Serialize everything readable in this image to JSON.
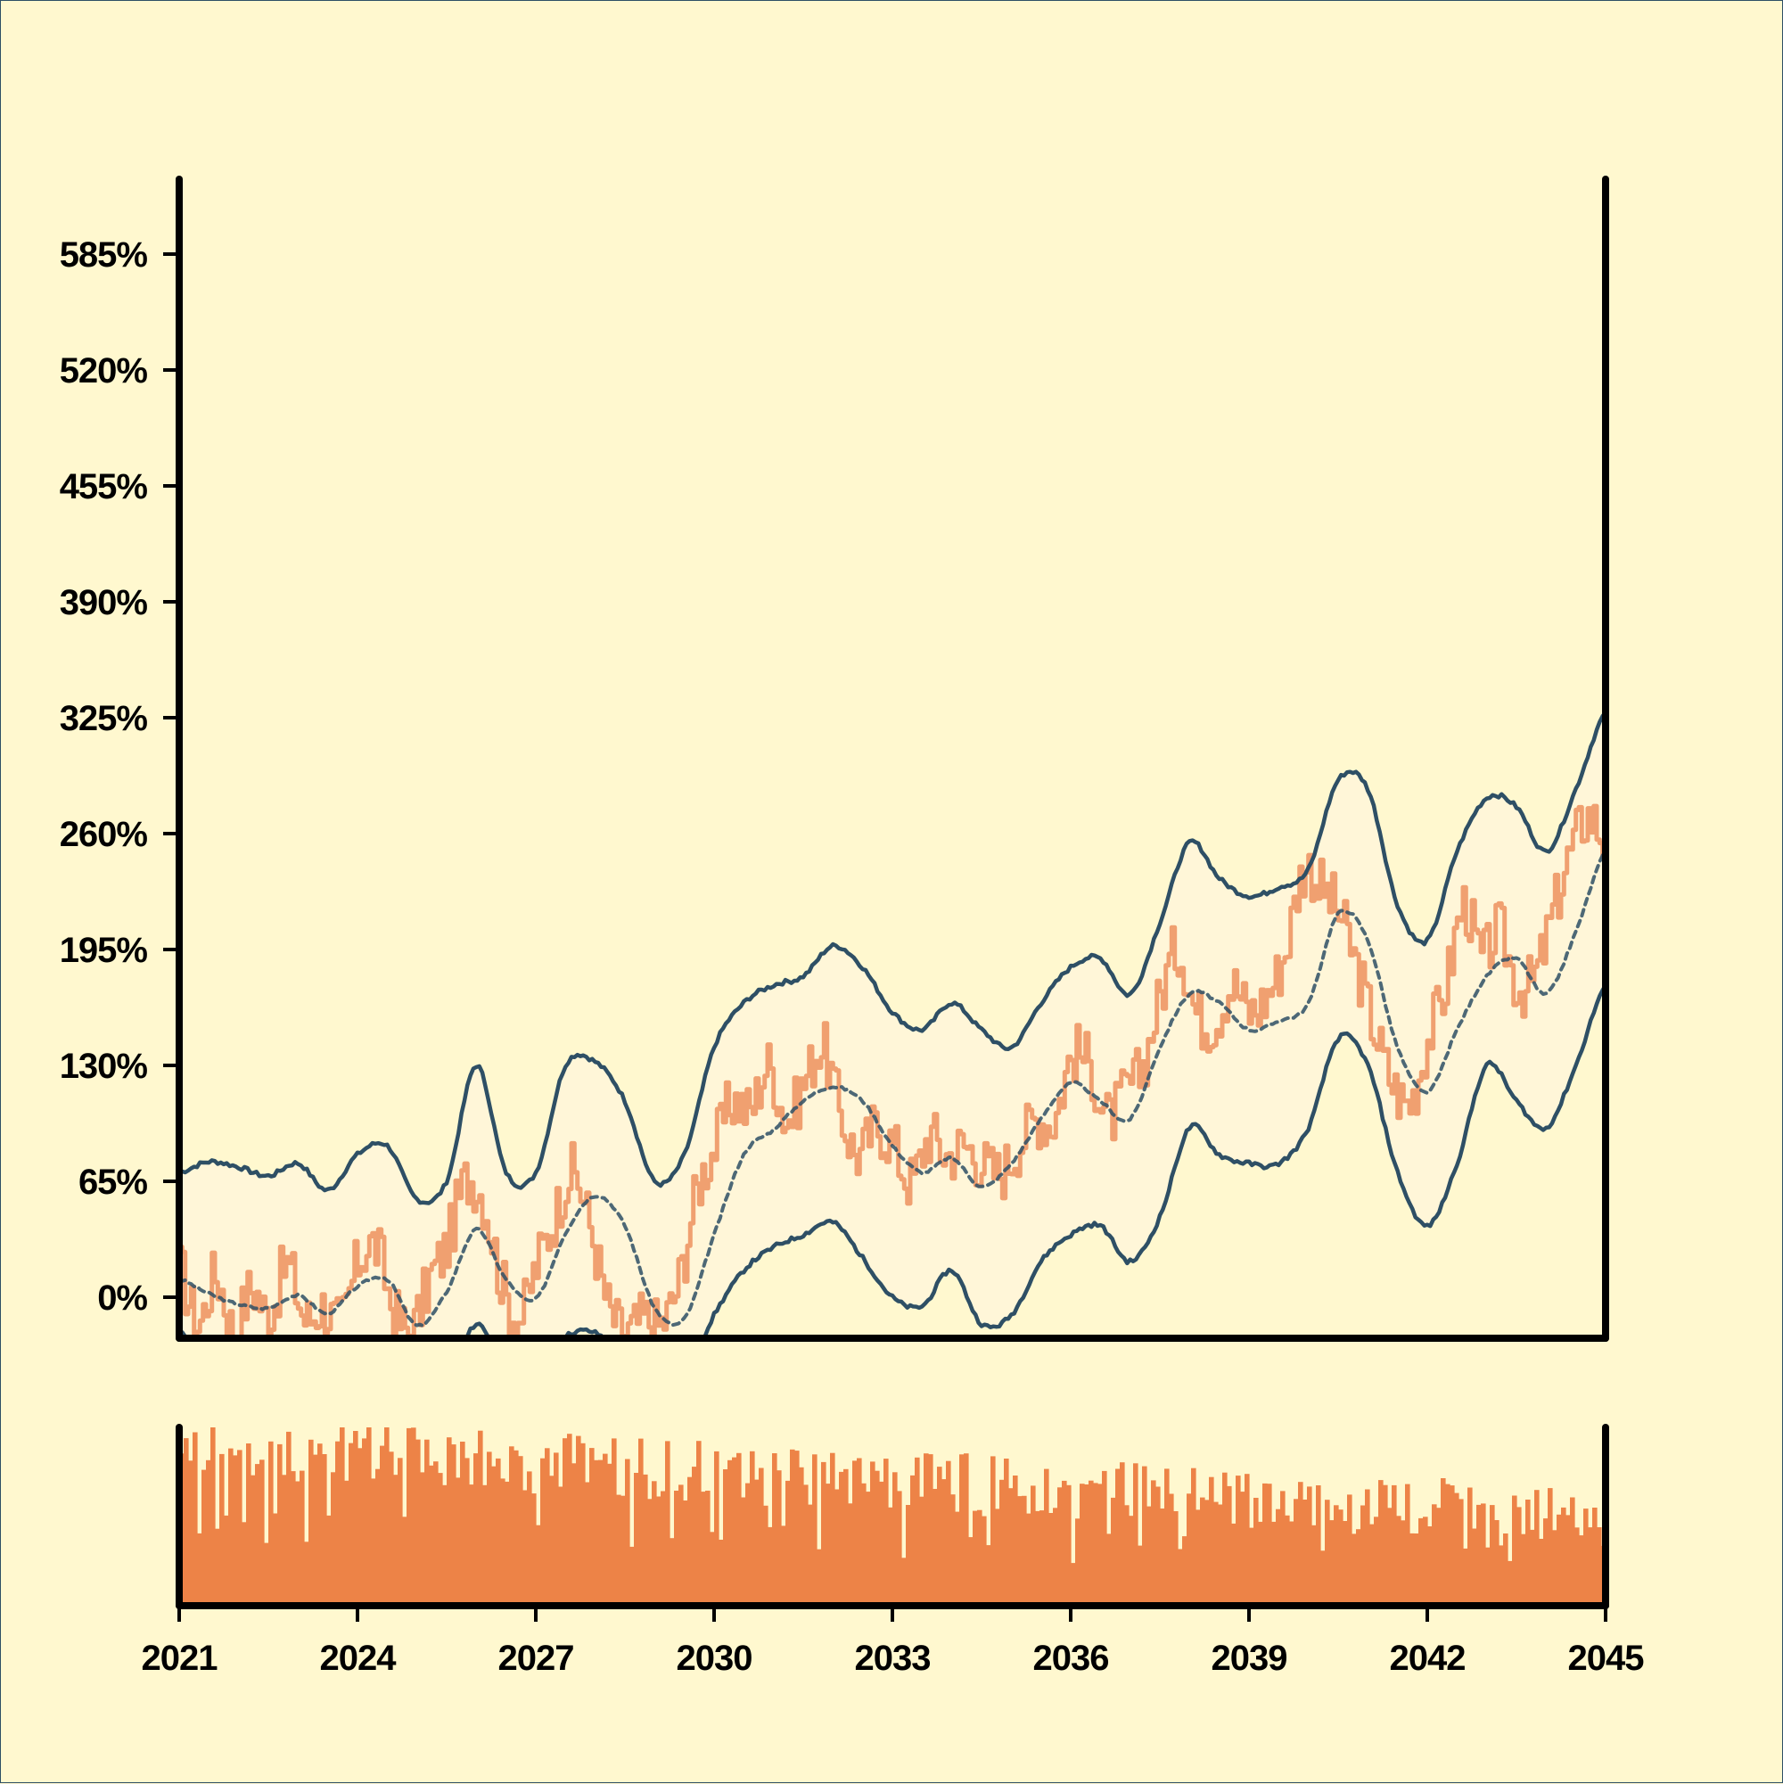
{
  "chart_data": [
    {
      "type": "line",
      "title": "",
      "xlabel": "",
      "ylabel": "",
      "x_range": [
        "2021",
        "2045"
      ],
      "ylim": [
        -23,
        627
      ],
      "y_ticks": [
        "0%",
        "65%",
        "130%",
        "195%",
        "260%",
        "325%",
        "390%",
        "455%",
        "520%",
        "585%"
      ],
      "y_tick_values": [
        0,
        65,
        130,
        195,
        260,
        325,
        390,
        455,
        520,
        585
      ],
      "grid": false,
      "colors": {
        "price": "#f0a070",
        "band": "#2e4f65",
        "band_fill": "#fff6d8",
        "background": "#fff8cf"
      },
      "series": [
        {
          "key": "price",
          "style": "solid",
          "points": [
            [
              2021.0,
              15
            ],
            [
              2021.3,
              -15
            ],
            [
              2021.6,
              12
            ],
            [
              2021.9,
              -18
            ],
            [
              2022.2,
              5
            ],
            [
              2022.5,
              -10
            ],
            [
              2022.8,
              18
            ],
            [
              2023.1,
              -12
            ],
            [
              2023.4,
              -5
            ],
            [
              2023.7,
              -14
            ],
            [
              2024.0,
              20
            ],
            [
              2024.3,
              28
            ],
            [
              2024.6,
              -8
            ],
            [
              2024.9,
              -18
            ],
            [
              2025.2,
              10
            ],
            [
              2025.5,
              30
            ],
            [
              2025.8,
              65
            ],
            [
              2026.1,
              55
            ],
            [
              2026.4,
              10
            ],
            [
              2026.7,
              -12
            ],
            [
              2027.0,
              18
            ],
            [
              2027.3,
              45
            ],
            [
              2027.6,
              70
            ],
            [
              2027.9,
              40
            ],
            [
              2028.2,
              -5
            ],
            [
              2028.5,
              -20
            ],
            [
              2028.8,
              -12
            ],
            [
              2029.1,
              -15
            ],
            [
              2029.4,
              10
            ],
            [
              2029.7,
              60
            ],
            [
              2030.0,
              85
            ],
            [
              2030.3,
              110
            ],
            [
              2030.6,
              105
            ],
            [
              2030.9,
              130
            ],
            [
              2031.2,
              100
            ],
            [
              2031.5,
              120
            ],
            [
              2031.8,
              140
            ],
            [
              2032.1,
              105
            ],
            [
              2032.4,
              80
            ],
            [
              2032.7,
              95
            ],
            [
              2033.0,
              85
            ],
            [
              2033.3,
              65
            ],
            [
              2033.6,
              90
            ],
            [
              2033.9,
              80
            ],
            [
              2034.2,
              85
            ],
            [
              2034.5,
              75
            ],
            [
              2034.8,
              70
            ],
            [
              2035.1,
              85
            ],
            [
              2035.4,
              100
            ],
            [
              2035.7,
              100
            ],
            [
              2036.0,
              135
            ],
            [
              2036.3,
              130
            ],
            [
              2036.6,
              100
            ],
            [
              2036.9,
              115
            ],
            [
              2037.2,
              130
            ],
            [
              2037.5,
              170
            ],
            [
              2037.8,
              195
            ],
            [
              2038.1,
              160
            ],
            [
              2038.4,
              155
            ],
            [
              2038.7,
              175
            ],
            [
              2039.0,
              160
            ],
            [
              2039.3,
              170
            ],
            [
              2039.6,
              195
            ],
            [
              2039.9,
              240
            ],
            [
              2040.2,
              230
            ],
            [
              2040.5,
              215
            ],
            [
              2040.8,
              185
            ],
            [
              2041.1,
              150
            ],
            [
              2041.4,
              120
            ],
            [
              2041.7,
              110
            ],
            [
              2042.0,
              145
            ],
            [
              2042.3,
              175
            ],
            [
              2042.6,
              220
            ],
            [
              2042.9,
              190
            ],
            [
              2043.2,
              205
            ],
            [
              2043.5,
              175
            ],
            [
              2043.8,
              180
            ],
            [
              2044.1,
              215
            ],
            [
              2044.4,
              250
            ],
            [
              2044.7,
              270
            ],
            [
              2045.0,
              255
            ]
          ]
        },
        {
          "key": "middle",
          "style": "dashed",
          "points": [
            [
              2021.0,
              10
            ],
            [
              2021.5,
              2
            ],
            [
              2022.0,
              -4
            ],
            [
              2022.5,
              -6
            ],
            [
              2023.0,
              1
            ],
            [
              2023.5,
              -9
            ],
            [
              2024.0,
              6
            ],
            [
              2024.5,
              10
            ],
            [
              2025.0,
              -16
            ],
            [
              2025.5,
              3
            ],
            [
              2026.0,
              38
            ],
            [
              2026.5,
              10
            ],
            [
              2027.0,
              -1
            ],
            [
              2027.5,
              36
            ],
            [
              2028.0,
              57
            ],
            [
              2028.5,
              40
            ],
            [
              2029.0,
              -6
            ],
            [
              2029.5,
              -12
            ],
            [
              2030.0,
              35
            ],
            [
              2030.5,
              80
            ],
            [
              2031.0,
              94
            ],
            [
              2031.5,
              110
            ],
            [
              2032.0,
              118
            ],
            [
              2032.5,
              110
            ],
            [
              2033.0,
              85
            ],
            [
              2033.5,
              70
            ],
            [
              2034.0,
              78
            ],
            [
              2034.5,
              62
            ],
            [
              2035.0,
              75
            ],
            [
              2035.5,
              100
            ],
            [
              2036.0,
              120
            ],
            [
              2036.5,
              110
            ],
            [
              2037.0,
              100
            ],
            [
              2037.5,
              140
            ],
            [
              2038.0,
              170
            ],
            [
              2038.5,
              165
            ],
            [
              2039.0,
              150
            ],
            [
              2039.5,
              155
            ],
            [
              2040.0,
              165
            ],
            [
              2040.5,
              215
            ],
            [
              2041.0,
              200
            ],
            [
              2041.5,
              140
            ],
            [
              2042.0,
              115
            ],
            [
              2042.5,
              150
            ],
            [
              2043.0,
              180
            ],
            [
              2043.5,
              190
            ],
            [
              2044.0,
              170
            ],
            [
              2044.5,
              205
            ],
            [
              2045.0,
              250
            ]
          ]
        },
        {
          "key": "upper",
          "style": "solid",
          "points": [
            [
              2021.0,
              70
            ],
            [
              2021.5,
              76
            ],
            [
              2022.0,
              73
            ],
            [
              2022.5,
              68
            ],
            [
              2023.0,
              75
            ],
            [
              2023.5,
              60
            ],
            [
              2024.0,
              80
            ],
            [
              2024.5,
              85
            ],
            [
              2025.0,
              55
            ],
            [
              2025.5,
              65
            ],
            [
              2026.0,
              130
            ],
            [
              2026.5,
              70
            ],
            [
              2027.0,
              70
            ],
            [
              2027.5,
              130
            ],
            [
              2028.0,
              132
            ],
            [
              2028.5,
              110
            ],
            [
              2029.0,
              65
            ],
            [
              2029.5,
              80
            ],
            [
              2030.0,
              140
            ],
            [
              2030.5,
              165
            ],
            [
              2031.0,
              175
            ],
            [
              2031.5,
              180
            ],
            [
              2032.0,
              197
            ],
            [
              2032.5,
              185
            ],
            [
              2033.0,
              160
            ],
            [
              2033.5,
              150
            ],
            [
              2034.0,
              165
            ],
            [
              2034.5,
              150
            ],
            [
              2035.0,
              140
            ],
            [
              2035.5,
              165
            ],
            [
              2036.0,
              185
            ],
            [
              2036.5,
              190
            ],
            [
              2037.0,
              170
            ],
            [
              2037.5,
              210
            ],
            [
              2038.0,
              255
            ],
            [
              2038.5,
              235
            ],
            [
              2039.0,
              225
            ],
            [
              2039.5,
              230
            ],
            [
              2040.0,
              240
            ],
            [
              2040.5,
              290
            ],
            [
              2041.0,
              285
            ],
            [
              2041.5,
              220
            ],
            [
              2042.0,
              200
            ],
            [
              2042.5,
              250
            ],
            [
              2043.0,
              280
            ],
            [
              2043.5,
              275
            ],
            [
              2044.0,
              250
            ],
            [
              2044.5,
              285
            ],
            [
              2045.0,
              328
            ]
          ]
        },
        {
          "key": "lower",
          "style": "solid",
          "points": [
            [
              2021.0,
              -20
            ],
            [
              2021.5,
              -30
            ],
            [
              2022.0,
              -35
            ],
            [
              2022.5,
              -42
            ],
            [
              2023.0,
              -35
            ],
            [
              2023.5,
              -42
            ],
            [
              2024.0,
              -40
            ],
            [
              2024.5,
              -38
            ],
            [
              2025.0,
              -55
            ],
            [
              2025.5,
              -50
            ],
            [
              2026.0,
              -15
            ],
            [
              2026.5,
              -40
            ],
            [
              2027.0,
              -42
            ],
            [
              2027.5,
              -22
            ],
            [
              2028.0,
              -20
            ],
            [
              2028.5,
              -35
            ],
            [
              2029.0,
              -55
            ],
            [
              2029.5,
              -45
            ],
            [
              2030.0,
              -10
            ],
            [
              2030.5,
              15
            ],
            [
              2031.0,
              28
            ],
            [
              2031.5,
              35
            ],
            [
              2032.0,
              42
            ],
            [
              2032.5,
              22
            ],
            [
              2033.0,
              0
            ],
            [
              2033.5,
              -5
            ],
            [
              2034.0,
              15
            ],
            [
              2034.5,
              -15
            ],
            [
              2035.0,
              -10
            ],
            [
              2035.5,
              20
            ],
            [
              2036.0,
              35
            ],
            [
              2036.5,
              40
            ],
            [
              2037.0,
              20
            ],
            [
              2037.5,
              45
            ],
            [
              2038.0,
              95
            ],
            [
              2038.5,
              80
            ],
            [
              2039.0,
              75
            ],
            [
              2039.5,
              75
            ],
            [
              2040.0,
              95
            ],
            [
              2040.5,
              145
            ],
            [
              2041.0,
              130
            ],
            [
              2041.5,
              70
            ],
            [
              2042.0,
              40
            ],
            [
              2042.5,
              75
            ],
            [
              2043.0,
              130
            ],
            [
              2043.5,
              110
            ],
            [
              2044.0,
              95
            ],
            [
              2044.5,
              130
            ],
            [
              2045.0,
              175
            ]
          ]
        }
      ]
    },
    {
      "type": "bar",
      "title": "",
      "x_range": [
        "2021",
        "2045"
      ],
      "x_ticks": [
        "2021",
        "2024",
        "2027",
        "2030",
        "2033",
        "2036",
        "2039",
        "2042",
        "2045"
      ],
      "x_tick_values": [
        2021,
        2024,
        2027,
        2030,
        2033,
        2036,
        2039,
        2042,
        2045
      ],
      "ylim": [
        0,
        1
      ],
      "color": "#ed8347",
      "trend_start": 0.9,
      "trend_end": 0.5,
      "bar_count": 320
    }
  ]
}
